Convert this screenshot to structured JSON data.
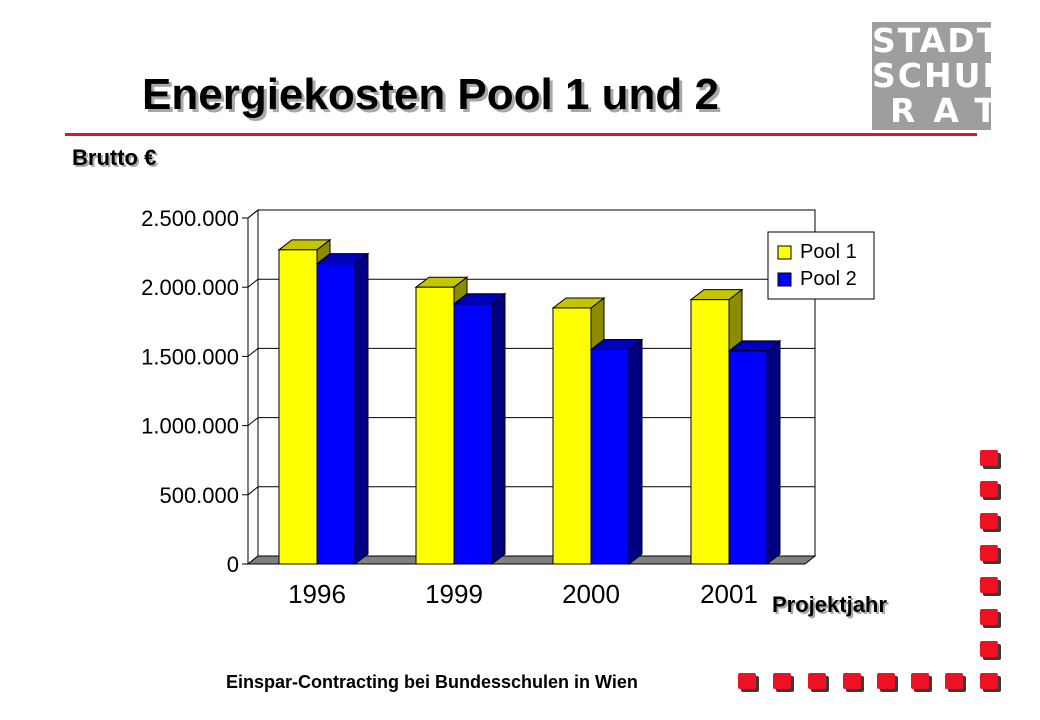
{
  "slide": {
    "title": "Energiekosten Pool 1 und 2",
    "subtitle": "Brutto €",
    "footer": "Einspar-Contracting bei Bundesschulen in Wien",
    "logo_lines": [
      "STADT",
      "SCHUL",
      "RAT"
    ],
    "accent_color": "#e0142a",
    "logo_color": "#9e9e9e"
  },
  "chart_data": {
    "type": "bar",
    "title": "",
    "xlabel": "Projektjahr",
    "ylabel": "",
    "categories": [
      "1996",
      "1999",
      "2000",
      "2001"
    ],
    "series": [
      {
        "name": "Pool 1",
        "values": [
          2270000,
          2000000,
          1850000,
          1910000
        ],
        "color": "#ffff00",
        "side_color": "#8c8c00",
        "top_color": "#c4c400"
      },
      {
        "name": "Pool 2",
        "values": [
          2170000,
          1880000,
          1550000,
          1540000
        ],
        "color": "#0000ff",
        "side_color": "#000080",
        "top_color": "#0000b8"
      }
    ],
    "ylim": [
      0,
      2500000
    ],
    "yticks": [
      0,
      500000,
      1000000,
      1500000,
      2000000,
      2500000
    ],
    "ytick_labels": [
      "0",
      "500.000",
      "1.000.000",
      "1.500.000",
      "2.000.000",
      "2.500.000"
    ],
    "grid": true,
    "legend_position": "top-right"
  }
}
